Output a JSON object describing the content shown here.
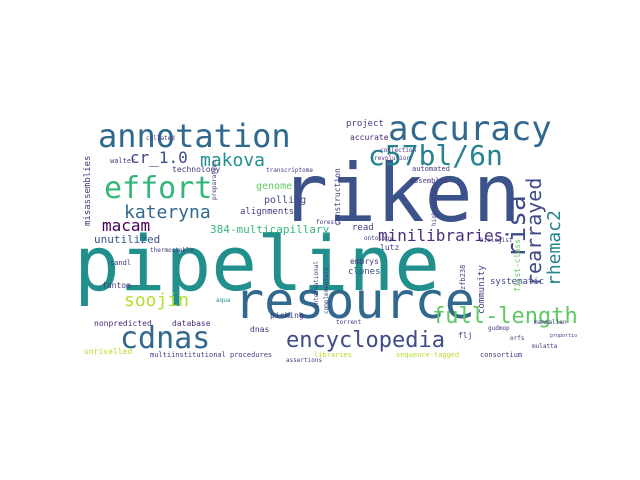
{
  "words": {
    "pipeline": "pipeline",
    "riken": "riken",
    "resource": "resource",
    "annotation": "annotation",
    "accuracy": "accuracy",
    "c57bl6n": "c57bl/6n",
    "effort": "effort",
    "cdnas": "cdnas",
    "encyclopedia": "encyclopedia",
    "full_length": "full-length",
    "risa": "risa",
    "rearrayed": "rearrayed",
    "rhemac2": "rhemac2",
    "kateryna": "kateryna",
    "makova": "makova",
    "cr_1_0": "cr_1.0",
    "macam": "macam",
    "soojin": "soojin",
    "multicapillary": "384-multicapillary",
    "minilibraries": "minilibraries",
    "unutilized": "unutilized",
    "project": "project",
    "genome": "genome",
    "polling": "polling",
    "alignments": "alignments",
    "technology": "technology",
    "walter": "walter",
    "misassemblies": "misassemblies",
    "accurate": "accurate",
    "assembled": "assembled",
    "automated": "automated",
    "read": "read",
    "construction": "construction",
    "embrys": "embrys",
    "clones": "clones",
    "lutz": "lutz",
    "systematic": "systematic",
    "candl": "candl",
    "fantom": "fantom",
    "nonpredicted": "nonpredicted",
    "database": "database",
    "dnas": "dnas",
    "multiinstitutional": "multiinstitutional",
    "procedures": "procedures",
    "unrivalled": "unrivalled",
    "libraries": "libraries",
    "sequence_tagged": "sequence-tagged",
    "consortium": "consortium",
    "flj": "flj",
    "gudmop": "gudmop",
    "mammalian": "mammalian",
    "collection": "collection",
    "revolution": "revolution",
    "ontology": "ontology",
    "transcriptome": "transcriptome",
    "aqua": "aqua",
    "picking": "picking",
    "community": "community",
    "first_class": "first-class",
    "high_quality": "high-quality",
    "forests": "forests",
    "assertions": "assertions",
    "international": "international",
    "complementary": "complementary",
    "biologist": "biologist",
    "orfs": "orfs",
    "zfb238": "zfb238",
    "mulatta": "mulatta",
    "proportion": "proportion",
    "torrent": "torrent",
    "collated": "collated",
    "thermostable": "thermostable",
    "preparation": "preparation"
  }
}
